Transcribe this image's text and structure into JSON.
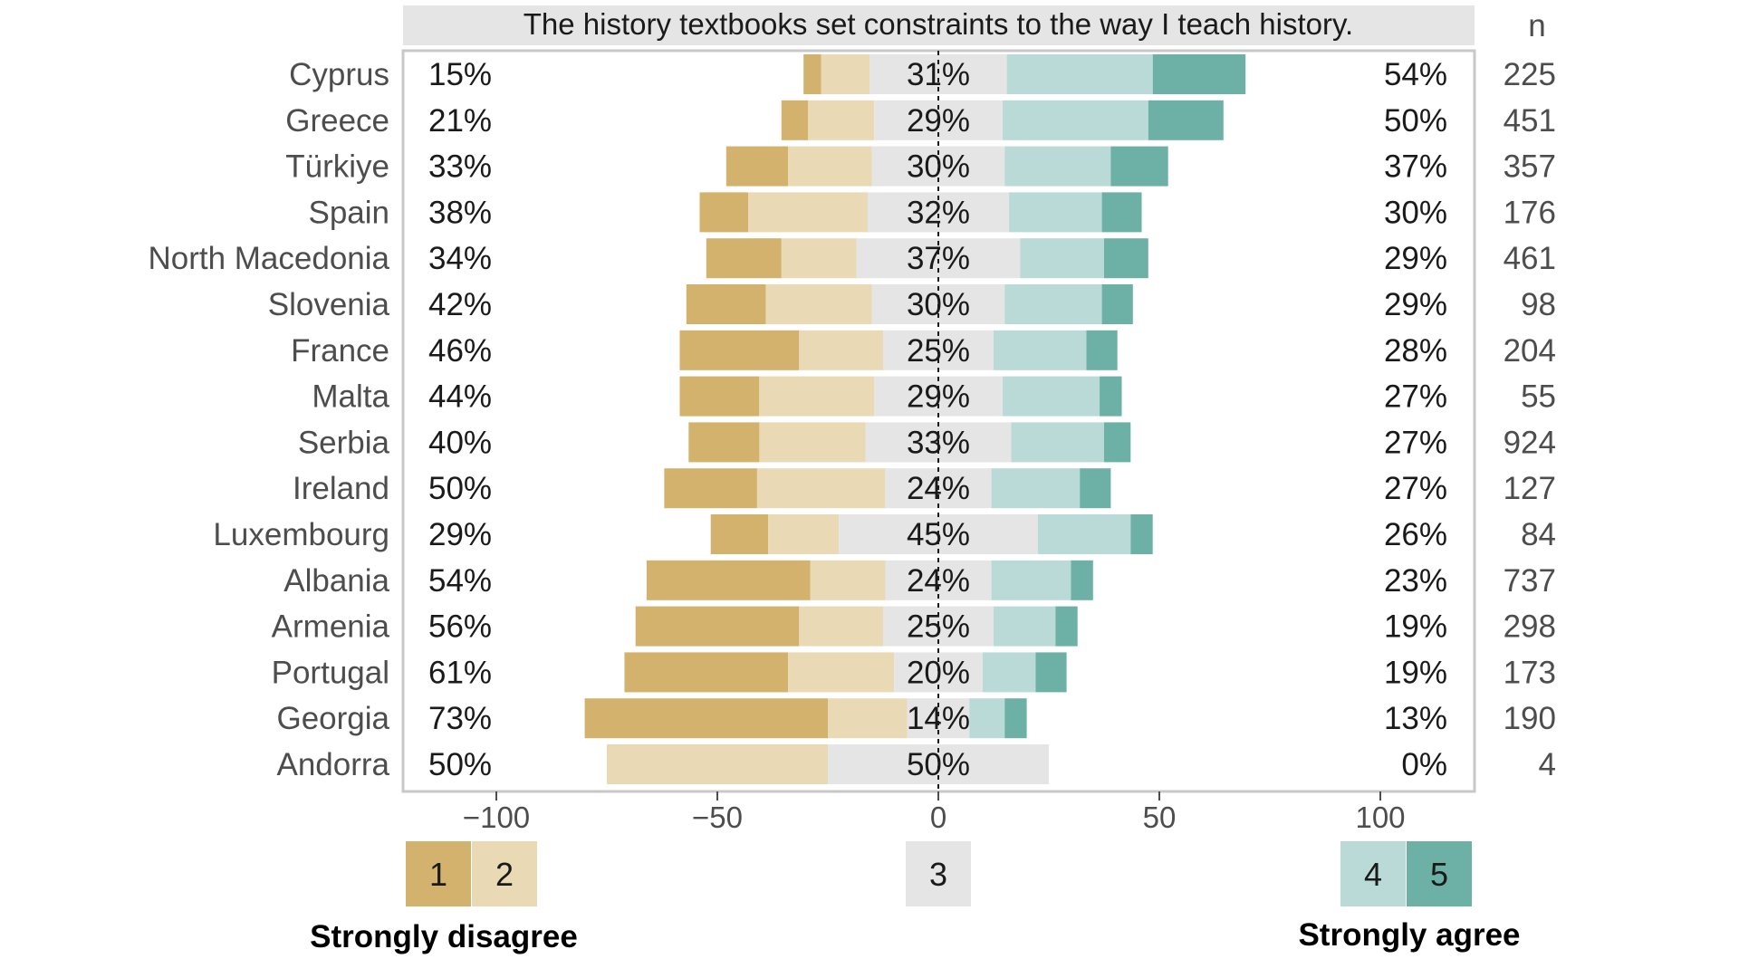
{
  "chart_data": {
    "type": "bar",
    "subtype": "diverging-stacked-likert",
    "title": "The history textbooks set constraints to the way I teach history.",
    "n_header": "n",
    "levels": [
      "1",
      "2",
      "3",
      "4",
      "5"
    ],
    "low_anchor_label": "Strongly disagree",
    "high_anchor_label": "Strongly agree",
    "colors": {
      "level1": "#d2b26c",
      "level2": "#e9dab5",
      "level3": "#e5e5e5",
      "level4": "#b9dad7",
      "level5": "#6db1a6",
      "panel_bg": "#ebebeb",
      "strip_bg": "#e5e5e5",
      "border": "#c8c8c8"
    },
    "x_ticks": [
      "−100",
      "−50",
      "0",
      "50",
      "100"
    ],
    "x_tick_values": [
      -100,
      -50,
      0,
      50,
      100
    ],
    "xlim": [
      -121,
      121
    ],
    "rows": [
      {
        "country": "Cyprus",
        "low": "15%",
        "neutral": "31%",
        "high": "54%",
        "n": "225",
        "levels": [
          4,
          11,
          31,
          33,
          21
        ]
      },
      {
        "country": "Greece",
        "low": "21%",
        "neutral": "29%",
        "high": "50%",
        "n": "451",
        "levels": [
          6,
          15,
          29,
          33,
          17
        ]
      },
      {
        "country": "Türkiye",
        "low": "33%",
        "neutral": "30%",
        "high": "37%",
        "n": "357",
        "levels": [
          14,
          19,
          30,
          24,
          13
        ]
      },
      {
        "country": "Spain",
        "low": "38%",
        "neutral": "32%",
        "high": "30%",
        "n": "176",
        "levels": [
          11,
          27,
          32,
          21,
          9
        ]
      },
      {
        "country": "North Macedonia",
        "low": "34%",
        "neutral": "37%",
        "high": "29%",
        "n": "461",
        "levels": [
          17,
          17,
          37,
          19,
          10
        ]
      },
      {
        "country": "Slovenia",
        "low": "42%",
        "neutral": "30%",
        "high": "29%",
        "n": "98",
        "levels": [
          18,
          24,
          30,
          22,
          7
        ]
      },
      {
        "country": "France",
        "low": "46%",
        "neutral": "25%",
        "high": "28%",
        "n": "204",
        "levels": [
          27,
          19,
          25,
          21,
          7
        ]
      },
      {
        "country": "Malta",
        "low": "44%",
        "neutral": "29%",
        "high": "27%",
        "n": "55",
        "levels": [
          18,
          26,
          29,
          22,
          5
        ]
      },
      {
        "country": "Serbia",
        "low": "40%",
        "neutral": "33%",
        "high": "27%",
        "n": "924",
        "levels": [
          16,
          24,
          33,
          21,
          6
        ]
      },
      {
        "country": "Ireland",
        "low": "50%",
        "neutral": "24%",
        "high": "27%",
        "n": "127",
        "levels": [
          21,
          29,
          24,
          20,
          7
        ]
      },
      {
        "country": "Luxembourg",
        "low": "29%",
        "neutral": "45%",
        "high": "26%",
        "n": "84",
        "levels": [
          13,
          16,
          45,
          21,
          5
        ]
      },
      {
        "country": "Albania",
        "low": "54%",
        "neutral": "24%",
        "high": "23%",
        "n": "737",
        "levels": [
          37,
          17,
          24,
          18,
          5
        ]
      },
      {
        "country": "Armenia",
        "low": "56%",
        "neutral": "25%",
        "high": "19%",
        "n": "298",
        "levels": [
          37,
          19,
          25,
          14,
          5
        ]
      },
      {
        "country": "Portugal",
        "low": "61%",
        "neutral": "20%",
        "high": "19%",
        "n": "173",
        "levels": [
          37,
          24,
          20,
          12,
          7
        ]
      },
      {
        "country": "Georgia",
        "low": "73%",
        "neutral": "14%",
        "high": "13%",
        "n": "190",
        "levels": [
          55,
          18,
          14,
          8,
          5
        ]
      },
      {
        "country": "Andorra",
        "low": "50%",
        "neutral": "50%",
        "high": "0%",
        "n": "4",
        "levels": [
          0,
          50,
          50,
          0,
          0
        ]
      }
    ]
  }
}
